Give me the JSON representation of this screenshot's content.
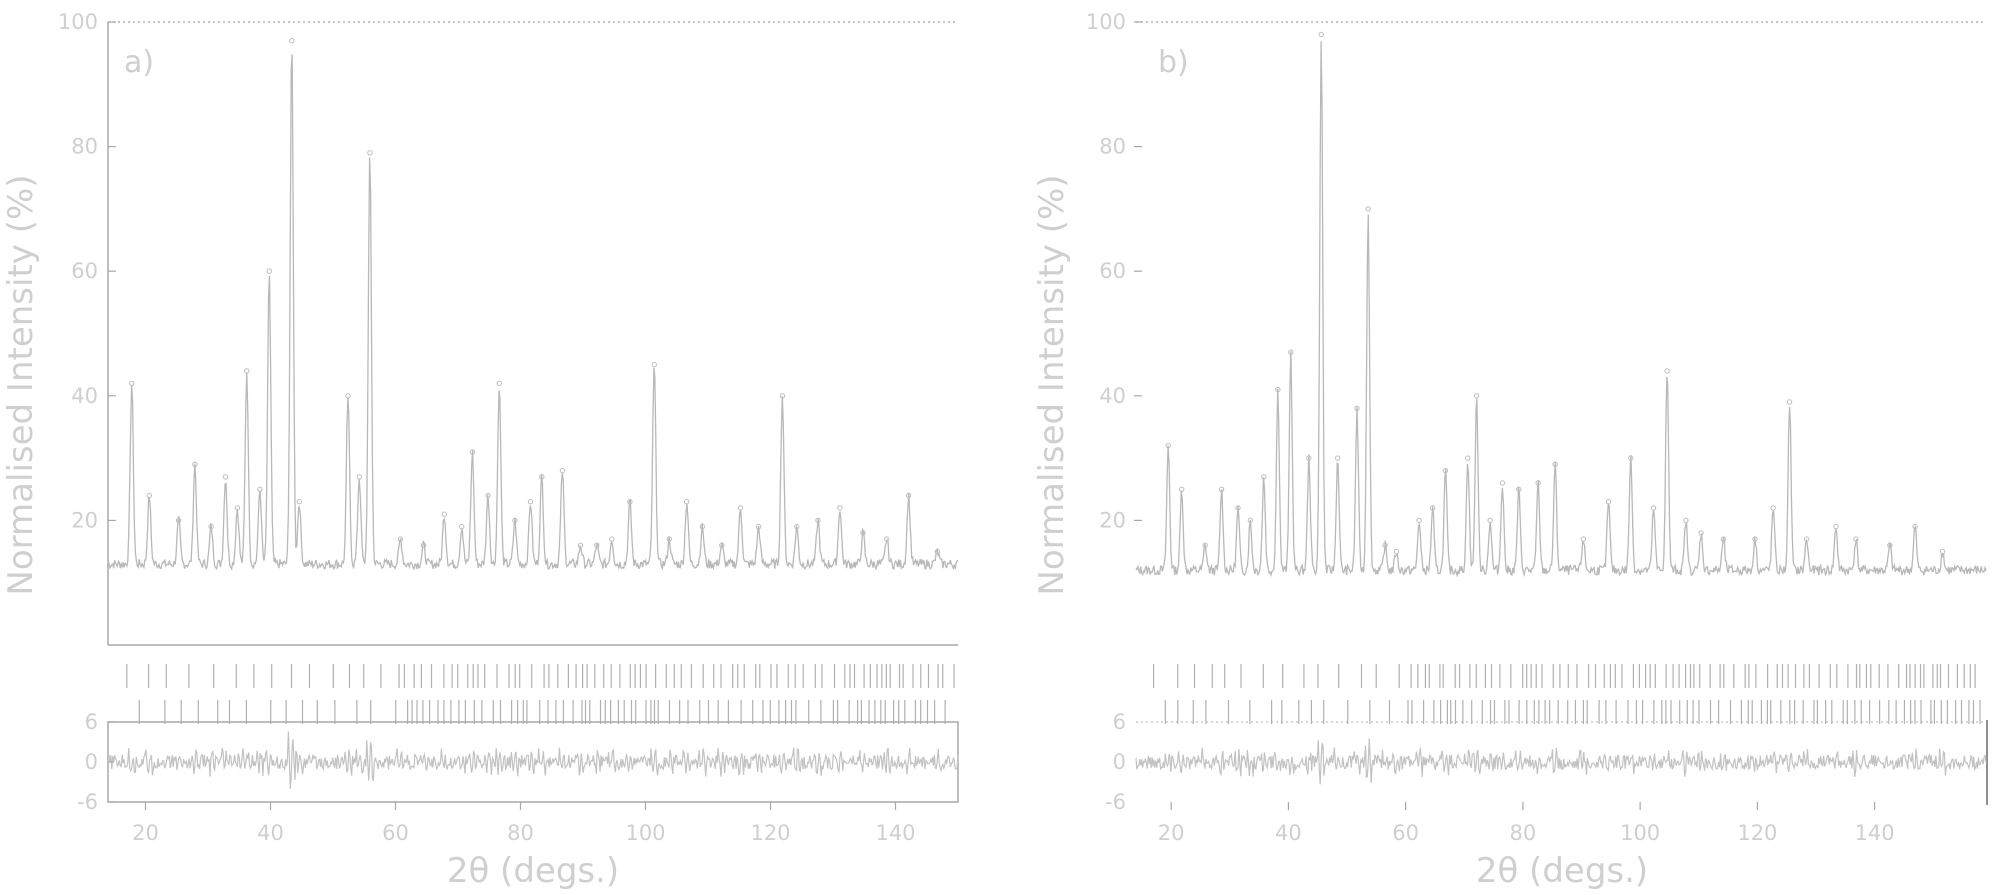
{
  "colors": {
    "ink": "#cfcfcf",
    "line": "#b5b5b5",
    "axis": "#a8a8a8"
  },
  "chart_data": [
    {
      "type": "line",
      "panel_label": "a)",
      "xlabel": "2θ (degs.)",
      "ylabel": "Normalised Intensity (%)",
      "xlim": [
        14,
        150
      ],
      "ylim": [
        0,
        100
      ],
      "x_ticks": [
        20,
        40,
        60,
        80,
        100,
        120,
        140
      ],
      "x_tick_labels": [
        "20",
        "40",
        "60",
        "80",
        "100",
        "120",
        "140"
      ],
      "y_ticks": [
        20,
        40,
        60,
        80,
        100
      ],
      "y_tick_labels": [
        "20",
        "40",
        "60",
        "80",
        "100"
      ],
      "diff_ylim": [
        -6,
        6
      ],
      "diff_ticks": [
        6,
        0,
        -6
      ],
      "diff_tick_labels": [
        "6",
        "0",
        "-6"
      ],
      "grid": false,
      "baseline": 13,
      "peaks": [
        {
          "x": 17.8,
          "y": 42
        },
        {
          "x": 20.6,
          "y": 24
        },
        {
          "x": 25.3,
          "y": 20
        },
        {
          "x": 27.9,
          "y": 29
        },
        {
          "x": 30.5,
          "y": 19
        },
        {
          "x": 32.8,
          "y": 27
        },
        {
          "x": 34.7,
          "y": 22
        },
        {
          "x": 36.2,
          "y": 44
        },
        {
          "x": 38.3,
          "y": 25
        },
        {
          "x": 39.8,
          "y": 60
        },
        {
          "x": 43.4,
          "y": 97
        },
        {
          "x": 44.6,
          "y": 23
        },
        {
          "x": 52.4,
          "y": 40
        },
        {
          "x": 54.2,
          "y": 27
        },
        {
          "x": 55.9,
          "y": 79
        },
        {
          "x": 60.8,
          "y": 17
        },
        {
          "x": 64.5,
          "y": 16
        },
        {
          "x": 67.8,
          "y": 21
        },
        {
          "x": 70.6,
          "y": 19
        },
        {
          "x": 72.3,
          "y": 31
        },
        {
          "x": 74.8,
          "y": 24
        },
        {
          "x": 76.6,
          "y": 42
        },
        {
          "x": 79.1,
          "y": 20
        },
        {
          "x": 81.6,
          "y": 23
        },
        {
          "x": 83.4,
          "y": 27
        },
        {
          "x": 86.7,
          "y": 28
        },
        {
          "x": 89.6,
          "y": 16
        },
        {
          "x": 92.2,
          "y": 16
        },
        {
          "x": 94.6,
          "y": 17
        },
        {
          "x": 97.5,
          "y": 23
        },
        {
          "x": 101.4,
          "y": 45
        },
        {
          "x": 103.8,
          "y": 17
        },
        {
          "x": 106.6,
          "y": 23
        },
        {
          "x": 109.1,
          "y": 19
        },
        {
          "x": 112.2,
          "y": 16
        },
        {
          "x": 115.2,
          "y": 22
        },
        {
          "x": 118.1,
          "y": 19
        },
        {
          "x": 121.9,
          "y": 40
        },
        {
          "x": 124.2,
          "y": 19
        },
        {
          "x": 127.6,
          "y": 20
        },
        {
          "x": 131.1,
          "y": 22
        },
        {
          "x": 134.8,
          "y": 18
        },
        {
          "x": 138.6,
          "y": 17
        },
        {
          "x": 142.1,
          "y": 24
        },
        {
          "x": 146.7,
          "y": 15
        }
      ]
    },
    {
      "type": "line",
      "panel_label": "b)",
      "xlabel": "2θ (degs.)",
      "ylabel": "Normalised Intensity (%)",
      "xlim": [
        14,
        159
      ],
      "ylim": [
        0,
        100
      ],
      "x_ticks": [
        20,
        40,
        60,
        80,
        100,
        120,
        140
      ],
      "x_tick_labels": [
        "20",
        "40",
        "60",
        "80",
        "100",
        "120",
        "140"
      ],
      "y_ticks": [
        20,
        40,
        60,
        80,
        100
      ],
      "y_tick_labels": [
        "20",
        "40",
        "60",
        "80",
        "100"
      ],
      "diff_ylim": [
        -6,
        6
      ],
      "diff_ticks": [
        6,
        0,
        -6
      ],
      "diff_tick_labels": [
        "6",
        "0",
        "-6"
      ],
      "grid": false,
      "baseline": 12,
      "peaks": [
        {
          "x": 19.5,
          "y": 32
        },
        {
          "x": 21.8,
          "y": 25
        },
        {
          "x": 25.8,
          "y": 16
        },
        {
          "x": 28.6,
          "y": 25
        },
        {
          "x": 31.4,
          "y": 22
        },
        {
          "x": 33.5,
          "y": 20
        },
        {
          "x": 35.8,
          "y": 27
        },
        {
          "x": 38.2,
          "y": 41
        },
        {
          "x": 40.4,
          "y": 47
        },
        {
          "x": 43.5,
          "y": 30
        },
        {
          "x": 45.6,
          "y": 98
        },
        {
          "x": 48.4,
          "y": 30
        },
        {
          "x": 51.7,
          "y": 38
        },
        {
          "x": 53.6,
          "y": 70
        },
        {
          "x": 56.5,
          "y": 16
        },
        {
          "x": 58.4,
          "y": 15
        },
        {
          "x": 62.3,
          "y": 20
        },
        {
          "x": 64.6,
          "y": 22
        },
        {
          "x": 66.8,
          "y": 28
        },
        {
          "x": 70.6,
          "y": 30
        },
        {
          "x": 72.1,
          "y": 40
        },
        {
          "x": 74.4,
          "y": 20
        },
        {
          "x": 76.5,
          "y": 26
        },
        {
          "x": 79.3,
          "y": 25
        },
        {
          "x": 82.6,
          "y": 26
        },
        {
          "x": 85.5,
          "y": 29
        },
        {
          "x": 90.3,
          "y": 17
        },
        {
          "x": 94.6,
          "y": 23
        },
        {
          "x": 98.4,
          "y": 30
        },
        {
          "x": 102.3,
          "y": 22
        },
        {
          "x": 104.6,
          "y": 44
        },
        {
          "x": 107.8,
          "y": 20
        },
        {
          "x": 110.4,
          "y": 18
        },
        {
          "x": 114.2,
          "y": 17
        },
        {
          "x": 119.6,
          "y": 17
        },
        {
          "x": 122.7,
          "y": 22
        },
        {
          "x": 125.5,
          "y": 39
        },
        {
          "x": 128.4,
          "y": 17
        },
        {
          "x": 133.4,
          "y": 19
        },
        {
          "x": 136.8,
          "y": 17
        },
        {
          "x": 142.6,
          "y": 16
        },
        {
          "x": 146.9,
          "y": 19
        },
        {
          "x": 151.6,
          "y": 15
        }
      ]
    }
  ]
}
